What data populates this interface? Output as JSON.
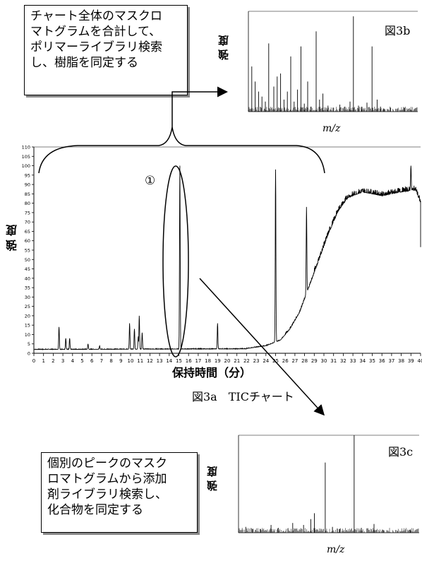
{
  "callouts": {
    "top": {
      "lines": [
        "チャート全体のマスクロ",
        "マトグラムを合計して、",
        "ポリマーライブラリ検索",
        "し、樹脂を同定する"
      ]
    },
    "bottom": {
      "lines": [
        "個別のピークのマスク",
        "ロマトグラムから添加",
        "剤ライブラリ検索し、",
        "化合物を同定する"
      ]
    }
  },
  "labels": {
    "fig3a": "図3a　TICチャート",
    "fig3b": "図3b",
    "fig3c": "図3c",
    "peak_marker": "①",
    "intensity_main": "強 度",
    "intensity_3b": "強 度",
    "intensity_3c": "強 度",
    "time_axis": "保持時間（分）",
    "mz_3b": "m/z",
    "mz_3c": "m/z"
  },
  "colors": {
    "line": "#000000",
    "shadow": "#888888"
  },
  "chart_data": [
    {
      "id": "tic",
      "type": "line",
      "xlim": [
        0,
        40
      ],
      "ylim": [
        0,
        110
      ],
      "x_ticks": [
        0,
        1,
        2,
        3,
        4,
        5,
        6,
        7,
        8,
        9,
        10,
        11,
        12,
        13,
        14,
        15,
        16,
        17,
        18,
        19,
        20,
        21,
        22,
        23,
        24,
        25,
        26,
        27,
        28,
        29,
        30,
        31,
        32,
        33,
        34,
        35,
        36,
        37,
        38,
        39,
        40
      ],
      "y_ticks": [
        0,
        5,
        10,
        15,
        20,
        25,
        30,
        35,
        40,
        45,
        50,
        55,
        60,
        65,
        70,
        75,
        80,
        85,
        90,
        95,
        100,
        105,
        110
      ],
      "baseline": 2,
      "peaks": [
        {
          "x": 2.6,
          "y": 14
        },
        {
          "x": 3.3,
          "y": 8
        },
        {
          "x": 3.7,
          "y": 8
        },
        {
          "x": 5.6,
          "y": 5
        },
        {
          "x": 6.8,
          "y": 4
        },
        {
          "x": 9.9,
          "y": 16
        },
        {
          "x": 10.4,
          "y": 13
        },
        {
          "x": 10.8,
          "y": 9
        },
        {
          "x": 10.9,
          "y": 20
        },
        {
          "x": 11.2,
          "y": 11
        },
        {
          "x": 15.1,
          "y": 100
        },
        {
          "x": 19.0,
          "y": 16
        },
        {
          "x": 25.0,
          "y": 98
        },
        {
          "x": 28.2,
          "y": 78
        },
        {
          "x": 39.0,
          "y": 100
        }
      ],
      "rise": [
        [
          22,
          2.5
        ],
        [
          24,
          4
        ],
        [
          25.5,
          7
        ],
        [
          26.5,
          13
        ],
        [
          27.5,
          22
        ],
        [
          28.5,
          36
        ],
        [
          29.5,
          50
        ],
        [
          30.5,
          64
        ],
        [
          31.5,
          76
        ],
        [
          32.5,
          83
        ],
        [
          34,
          86
        ],
        [
          36,
          84
        ],
        [
          38,
          86
        ],
        [
          39.5,
          87
        ],
        [
          40,
          80
        ],
        [
          40.5,
          55
        ]
      ]
    },
    {
      "id": "spectrum-3b",
      "type": "bar",
      "bars": [
        [
          0.02,
          0.45
        ],
        [
          0.04,
          0.3
        ],
        [
          0.06,
          0.2
        ],
        [
          0.08,
          0.15
        ],
        [
          0.1,
          0.1
        ],
        [
          0.12,
          0.68
        ],
        [
          0.15,
          0.25
        ],
        [
          0.17,
          0.35
        ],
        [
          0.19,
          0.38
        ],
        [
          0.21,
          0.12
        ],
        [
          0.23,
          0.2
        ],
        [
          0.25,
          0.55
        ],
        [
          0.27,
          0.1
        ],
        [
          0.29,
          0.22
        ],
        [
          0.31,
          0.65
        ],
        [
          0.33,
          0.08
        ],
        [
          0.35,
          0.3
        ],
        [
          0.37,
          0.05
        ],
        [
          0.4,
          0.8
        ],
        [
          0.42,
          0.12
        ],
        [
          0.44,
          0.18
        ],
        [
          0.47,
          0.06
        ],
        [
          0.5,
          0.04
        ],
        [
          0.54,
          0.07
        ],
        [
          0.57,
          0.05
        ],
        [
          0.6,
          0.1
        ],
        [
          0.62,
          0.95
        ],
        [
          0.65,
          0.06
        ],
        [
          0.67,
          0.05
        ],
        [
          0.7,
          0.09
        ],
        [
          0.73,
          0.65
        ],
        [
          0.76,
          0.12
        ],
        [
          0.78,
          0.05
        ],
        [
          0.8,
          0.03
        ],
        [
          0.84,
          0.04
        ],
        [
          0.88,
          0.03
        ],
        [
          0.92,
          0.04
        ],
        [
          0.96,
          0.02
        ]
      ]
    },
    {
      "id": "spectrum-3c",
      "type": "bar",
      "bars": [
        [
          0.04,
          0.06
        ],
        [
          0.08,
          0.04
        ],
        [
          0.12,
          0.04
        ],
        [
          0.18,
          0.08
        ],
        [
          0.22,
          0.05
        ],
        [
          0.3,
          0.1
        ],
        [
          0.36,
          0.08
        ],
        [
          0.4,
          0.14
        ],
        [
          0.42,
          0.2
        ],
        [
          0.48,
          0.72
        ],
        [
          0.52,
          0.06
        ],
        [
          0.56,
          0.04
        ],
        [
          0.64,
          1.0
        ],
        [
          0.68,
          0.05
        ],
        [
          0.75,
          0.09
        ],
        [
          0.8,
          0.03
        ],
        [
          0.88,
          0.02
        ],
        [
          0.95,
          0.03
        ]
      ]
    }
  ]
}
